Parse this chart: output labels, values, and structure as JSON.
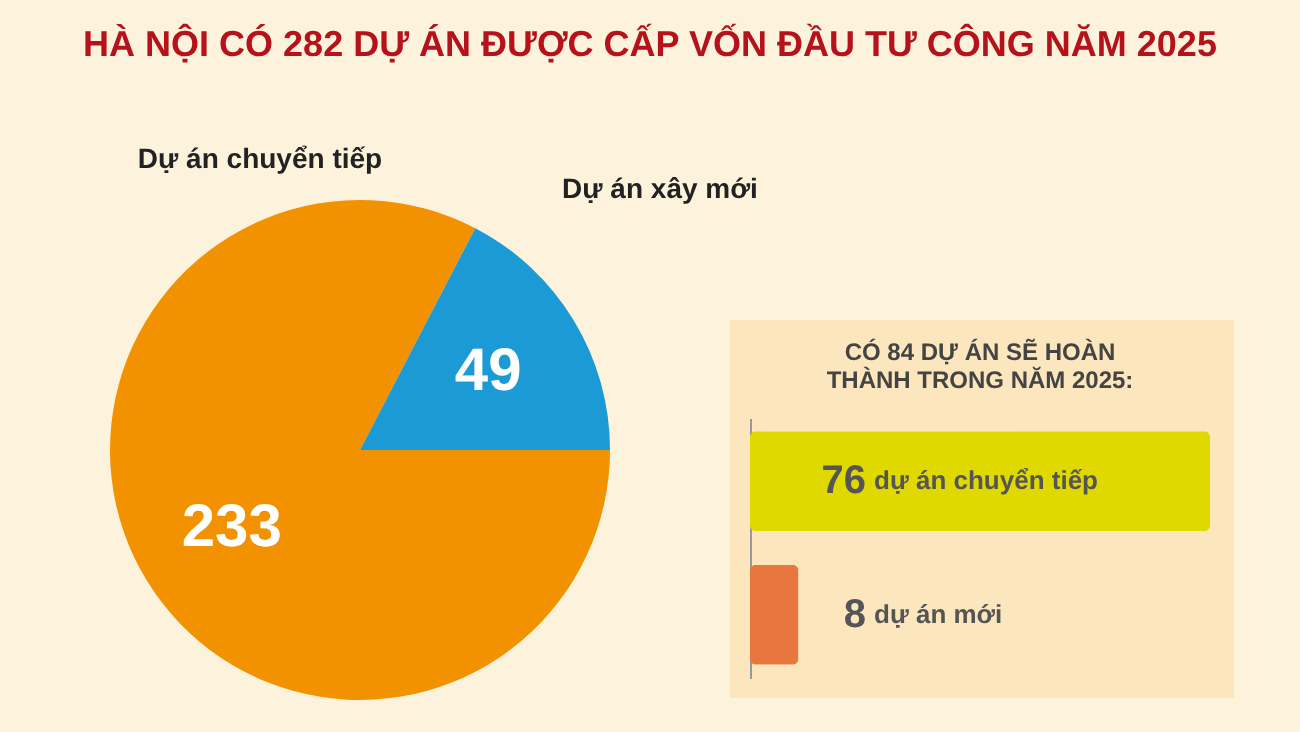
{
  "chart_data": [
    {
      "type": "pie",
      "title": "HÀ NỘI CÓ 282 DỰ ÁN ĐƯỢC CẤP VỐN ĐẦU TƯ CÔNG NĂM 2025",
      "categories": [
        "Dự án chuyển tiếp",
        "Dự án xây mới"
      ],
      "values": [
        233,
        49
      ],
      "colors": [
        "#f39200",
        "#1b9ad6"
      ],
      "data_labels": true
    },
    {
      "type": "bar",
      "orientation": "horizontal",
      "title": "CÓ 84 DỰ ÁN SẼ HOÀN THÀNH TRONG NĂM 2025:",
      "categories": [
        "dự án chuyển tiếp",
        "dự án mới"
      ],
      "values": [
        76,
        8
      ],
      "colors": [
        "#dfd900",
        "#e8773f"
      ],
      "data_labels": true
    }
  ]
}
